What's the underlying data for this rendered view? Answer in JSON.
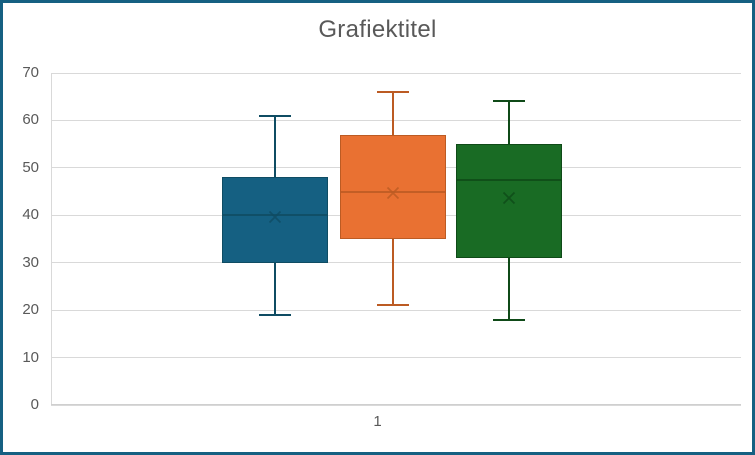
{
  "window": {
    "border_color": "#156082",
    "background": "#FFFFFF"
  },
  "chart_data": {
    "type": "boxplot",
    "title": "Grafiektitel",
    "categories": [
      "1"
    ],
    "xlabel": "",
    "ylabel": "",
    "ylim": [
      0,
      70
    ],
    "yticks": [
      0,
      10,
      20,
      30,
      40,
      50,
      60,
      70
    ],
    "grid": true,
    "legend": "none",
    "series": [
      {
        "color": "#156082",
        "line_color": "#0F4C63",
        "min": 19,
        "q1": 30,
        "median": 40,
        "mean": 39.6,
        "q3": 48,
        "max": 61
      },
      {
        "color": "#E97132",
        "line_color": "#BC5B23",
        "min": 21,
        "q1": 35,
        "median": 45,
        "mean": 44.8,
        "q3": 57,
        "max": 66
      },
      {
        "color": "#196B24",
        "line_color": "#0F4A18",
        "min": 18,
        "q1": 31,
        "median": 47.5,
        "mean": 43.6,
        "q3": 55,
        "max": 64
      }
    ]
  },
  "styles": {
    "title_color": "#595959",
    "axis_label_color": "#595959",
    "gridline_color": "#D9D9D9"
  },
  "icons": {
    "mean_marker": "x-cross-icon"
  }
}
